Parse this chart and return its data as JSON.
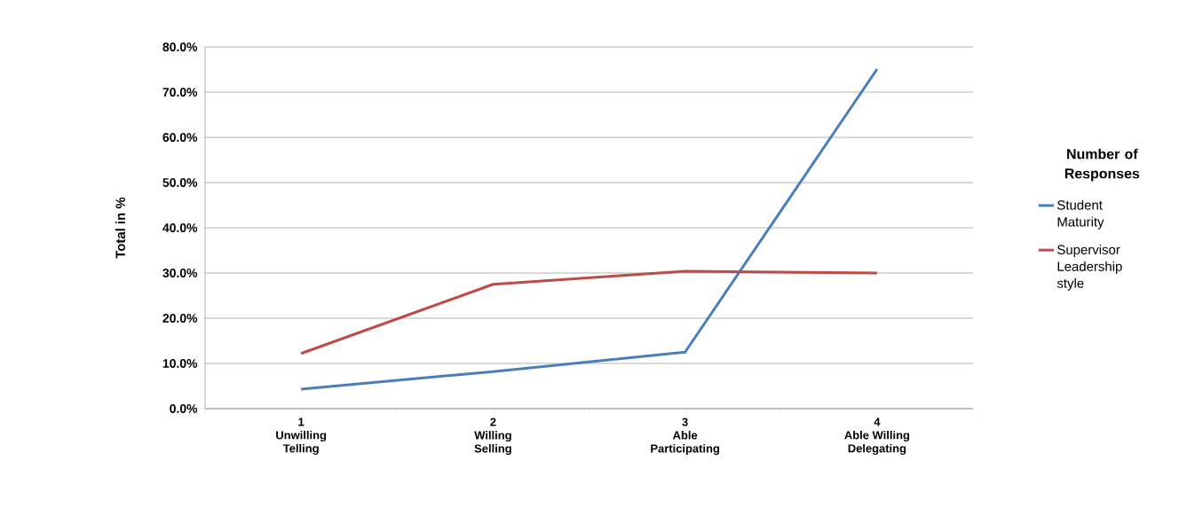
{
  "chart_data": {
    "type": "line",
    "ylabel": "Total in %",
    "legend_title": "Number of Responses",
    "legend": "right",
    "grid": "y",
    "categories": [
      "1\nUnwilling\nTelling",
      "2\nWilling\nSelling",
      "3\nAble\nParticipating",
      "4\nAble Willing\nDelegating"
    ],
    "ylim": [
      0,
      80
    ],
    "yticks": [
      {
        "value": 0,
        "label": "0.0%"
      },
      {
        "value": 10,
        "label": "10.0%"
      },
      {
        "value": 20,
        "label": "20.0%"
      },
      {
        "value": 30,
        "label": "30.0%"
      },
      {
        "value": 40,
        "label": "40.0%"
      },
      {
        "value": 50,
        "label": "50.0%"
      },
      {
        "value": 60,
        "label": "60.0%"
      },
      {
        "value": 70,
        "label": "70.0%"
      },
      {
        "value": 80,
        "label": "80.0%"
      }
    ],
    "series": [
      {
        "name": "Student Maturity",
        "color": "#4a7ebb",
        "values": [
          4.3,
          8.2,
          12.5,
          75.1
        ]
      },
      {
        "name": "Supervisor Leadership style",
        "color": "#be4b48",
        "values": [
          12.2,
          27.5,
          30.4,
          30.0
        ]
      }
    ]
  }
}
